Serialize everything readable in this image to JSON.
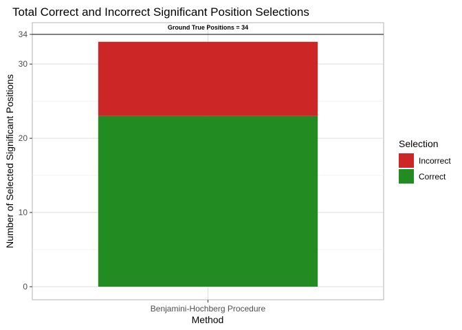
{
  "chart_data": {
    "type": "bar",
    "title": "Total Correct and Incorrect Significant Position Selections",
    "xlabel": "Method",
    "ylabel": "Number of Selected Significant Positions",
    "categories": [
      "Benjamini-Hochberg Procedure"
    ],
    "series": [
      {
        "name": "Correct",
        "values": [
          23
        ],
        "color": "#228B22"
      },
      {
        "name": "Incorrect",
        "values": [
          10
        ],
        "color": "#CD2626"
      }
    ],
    "stacked": true,
    "ylim": [
      0,
      34
    ],
    "y_ticks": [
      0,
      10,
      20,
      30,
      34
    ],
    "reference_line": {
      "value": 34,
      "label": "Ground True Positions = 34",
      "color": "#000000"
    },
    "legend": {
      "title": "Selection",
      "placement": "right",
      "items": [
        {
          "label": "Incorrect",
          "color": "#CD2626"
        },
        {
          "label": "Correct",
          "color": "#228B22"
        }
      ]
    },
    "grid": true
  }
}
